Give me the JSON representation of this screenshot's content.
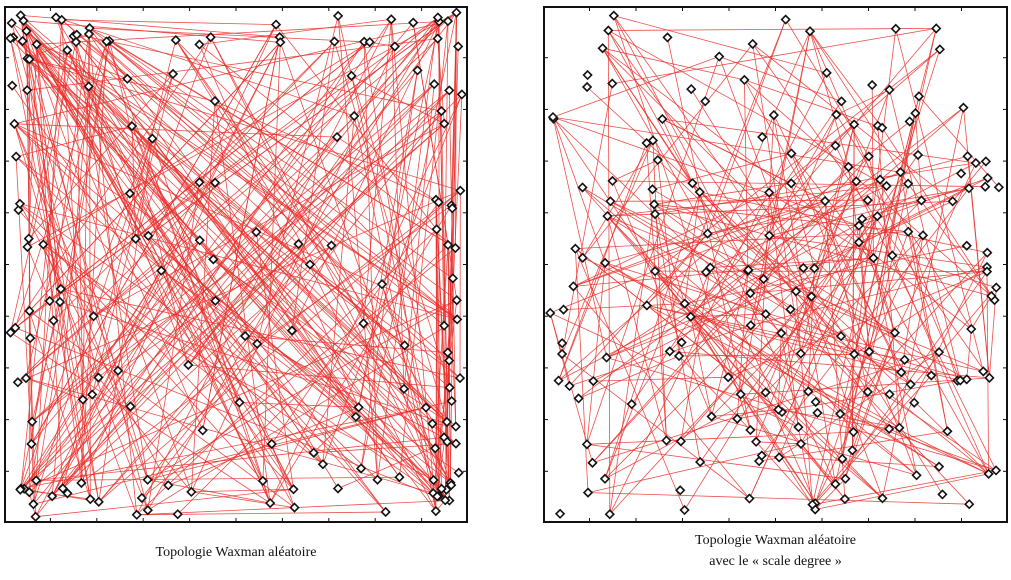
{
  "figure": {
    "left": {
      "caption": "Topologie Waxman aléatoire",
      "edge_color": "#e8302c",
      "node_color": "#111111"
    },
    "right": {
      "caption_line1": "Topologie Waxman aléatoire",
      "caption_line2": "avec le « scale degree »",
      "edge_color": "#e8302c",
      "node_color": "#111111"
    }
  }
}
